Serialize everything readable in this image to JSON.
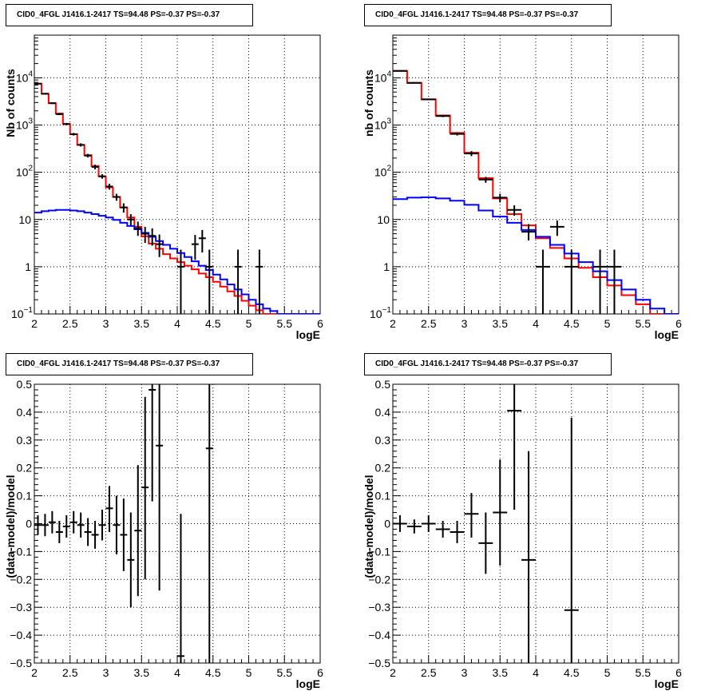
{
  "chart_data": [
    {
      "type": "histogram",
      "title": "CID0_4FGL J1416.1-2417 TS=94.48 PS=-0.37 PS=-0.37",
      "xlabel": "logE",
      "ylabel": "Nb of counts",
      "xlim": [
        2,
        6
      ],
      "ylim": [
        0.1,
        80000
      ],
      "yscale": "log",
      "grid": true,
      "xticks": [
        "2",
        "2.5",
        "3",
        "3.5",
        "4",
        "4.5",
        "5",
        "5.5",
        "6"
      ],
      "yticks": [
        {
          "value": 0.1,
          "label": "10",
          "exp": "−1"
        },
        {
          "value": 1,
          "label": "1",
          "exp": ""
        },
        {
          "value": 10,
          "label": "10",
          "exp": ""
        },
        {
          "value": 100,
          "label": "10",
          "exp": "2"
        },
        {
          "value": 1000,
          "label": "10",
          "exp": "3"
        },
        {
          "value": 10000,
          "label": "10",
          "exp": "4"
        }
      ],
      "series": [
        {
          "color": "#ff0000",
          "kind": "step",
          "edges": [
            2,
            2.1,
            2.2,
            2.3,
            2.4,
            2.5,
            2.6,
            2.7,
            2.8,
            2.9,
            3,
            3.1,
            3.2,
            3.3,
            3.4,
            3.5,
            3.6,
            3.7,
            3.8,
            3.9,
            4,
            4.1,
            4.2,
            4.3,
            4.4,
            4.5,
            4.6,
            4.7,
            4.8,
            4.9,
            5,
            5.1,
            5.2,
            5.3,
            5.4,
            5.5,
            5.6,
            5.7,
            5.8,
            5.9,
            6
          ],
          "values": [
            7500,
            4600,
            2900,
            1750,
            1050,
            640,
            380,
            230,
            135,
            82,
            48,
            30,
            18,
            11,
            7,
            4.4,
            3.1,
            2.4,
            1.85,
            1.5,
            1.25,
            1.05,
            0.88,
            0.72,
            0.6,
            0.48,
            0.38,
            0.3,
            0.24,
            0.19,
            0.15,
            0.12,
            0.1,
            0.1,
            0.1,
            0.1,
            0.1,
            0.1,
            0.1,
            0.1
          ]
        },
        {
          "color": "#0000ff",
          "kind": "step",
          "edges": [
            2,
            2.1,
            2.2,
            2.3,
            2.4,
            2.5,
            2.6,
            2.7,
            2.8,
            2.9,
            3,
            3.1,
            3.2,
            3.3,
            3.4,
            3.5,
            3.6,
            3.7,
            3.8,
            3.9,
            4,
            4.1,
            4.2,
            4.3,
            4.4,
            4.5,
            4.6,
            4.7,
            4.8,
            4.9,
            5,
            5.1,
            5.2,
            5.3,
            5.4,
            5.5,
            5.6,
            5.7,
            5.8,
            5.9,
            6
          ],
          "values": [
            14,
            15,
            15.5,
            16,
            16,
            15.5,
            15,
            14,
            13,
            12,
            11,
            9.8,
            8.5,
            7.3,
            6.2,
            5.2,
            4.3,
            3.5,
            2.9,
            2.4,
            1.95,
            1.6,
            1.3,
            1.05,
            0.85,
            0.68,
            0.54,
            0.42,
            0.33,
            0.26,
            0.2,
            0.16,
            0.13,
            0.115,
            0.1,
            0.1,
            0.1,
            0.1,
            0.1,
            0.1
          ]
        },
        {
          "color": "#000000",
          "kind": "points",
          "dx": 0.05,
          "points": [
            {
              "x": 2.05,
              "y": 7500,
              "lo": 7330,
              "hi": 7670
            },
            {
              "x": 2.15,
              "y": 4600,
              "lo": 4460,
              "hi": 4740
            },
            {
              "x": 2.25,
              "y": 2900,
              "lo": 2790,
              "hi": 3010
            },
            {
              "x": 2.35,
              "y": 1700,
              "lo": 1620,
              "hi": 1780
            },
            {
              "x": 2.45,
              "y": 1050,
              "lo": 990,
              "hi": 1110
            },
            {
              "x": 2.55,
              "y": 640,
              "lo": 600,
              "hi": 680
            },
            {
              "x": 2.65,
              "y": 380,
              "lo": 350,
              "hi": 410
            },
            {
              "x": 2.75,
              "y": 225,
              "lo": 205,
              "hi": 245
            },
            {
              "x": 2.85,
              "y": 130,
              "lo": 115,
              "hi": 145
            },
            {
              "x": 2.95,
              "y": 82,
              "lo": 73,
              "hi": 91
            },
            {
              "x": 3.05,
              "y": 50,
              "lo": 43,
              "hi": 57
            },
            {
              "x": 3.15,
              "y": 30,
              "lo": 25,
              "hi": 35
            },
            {
              "x": 3.25,
              "y": 18,
              "lo": 14,
              "hi": 22
            },
            {
              "x": 3.35,
              "y": 10,
              "lo": 7.5,
              "hi": 13
            },
            {
              "x": 3.45,
              "y": 6.5,
              "lo": 4.5,
              "hi": 9
            },
            {
              "x": 3.55,
              "y": 5,
              "lo": 3.2,
              "hi": 7
            },
            {
              "x": 3.65,
              "y": 4.5,
              "lo": 2.8,
              "hi": 6.5
            },
            {
              "x": 3.75,
              "y": 3,
              "lo": 1.6,
              "hi": 4.8
            },
            {
              "x": 4.05,
              "y": 1,
              "lo": 0.1,
              "hi": 2.3
            },
            {
              "x": 4.25,
              "y": 3,
              "lo": 1.4,
              "hi": 4.7
            },
            {
              "x": 4.35,
              "y": 4,
              "lo": 2,
              "hi": 6
            },
            {
              "x": 4.45,
              "y": 1,
              "lo": 0.1,
              "hi": 2.3
            },
            {
              "x": 4.85,
              "y": 1,
              "lo": 0.1,
              "hi": 2.3
            },
            {
              "x": 5.15,
              "y": 1,
              "lo": 0.1,
              "hi": 2.3
            }
          ]
        }
      ]
    },
    {
      "type": "histogram",
      "title": "CID0_4FGL J1416.1-2417 TS=94.48 PS=-0.37 PS=-0.37",
      "xlabel": "logE",
      "ylabel": "nb of counts",
      "xlim": [
        2,
        6
      ],
      "ylim": [
        0.1,
        80000
      ],
      "yscale": "log",
      "grid": true,
      "xticks": [
        "2",
        "2.5",
        "3",
        "3.5",
        "4",
        "4.5",
        "5",
        "5.5",
        "6"
      ],
      "yticks": [
        {
          "value": 0.1,
          "label": "10",
          "exp": "−1"
        },
        {
          "value": 1,
          "label": "1",
          "exp": ""
        },
        {
          "value": 10,
          "label": "10",
          "exp": ""
        },
        {
          "value": 100,
          "label": "10",
          "exp": "2"
        },
        {
          "value": 1000,
          "label": "10",
          "exp": "3"
        },
        {
          "value": 10000,
          "label": "10",
          "exp": "4"
        }
      ],
      "series": [
        {
          "color": "#ff0000",
          "kind": "step",
          "edges": [
            2,
            2.2,
            2.4,
            2.6,
            2.8,
            3,
            3.2,
            3.4,
            3.6,
            3.8,
            4,
            4.2,
            4.4,
            4.6,
            4.8,
            5,
            5.2,
            5.4,
            5.6,
            5.8,
            6
          ],
          "values": [
            14000,
            7800,
            3500,
            1600,
            680,
            260,
            75,
            28,
            13,
            7.5,
            4,
            2.5,
            1.5,
            0.95,
            0.6,
            0.4,
            0.25,
            0.16,
            0.1,
            0.1
          ]
        },
        {
          "color": "#0000ff",
          "kind": "step",
          "edges": [
            2,
            2.2,
            2.4,
            2.6,
            2.8,
            3,
            3.2,
            3.4,
            3.6,
            3.8,
            4,
            4.2,
            4.4,
            4.6,
            4.8,
            5,
            5.2,
            5.4,
            5.6,
            5.8,
            6
          ],
          "values": [
            27,
            29,
            29.5,
            28,
            25,
            20.5,
            15.5,
            11.5,
            8.5,
            6,
            4.3,
            2.9,
            1.9,
            1.25,
            0.8,
            0.52,
            0.33,
            0.2,
            0.13,
            0.1
          ]
        },
        {
          "color": "#000000",
          "kind": "points",
          "dx": 0.1,
          "points": [
            {
              "x": 2.1,
              "y": 14000,
              "lo": 13760,
              "hi": 14240
            },
            {
              "x": 2.3,
              "y": 7800,
              "lo": 7620,
              "hi": 7980
            },
            {
              "x": 2.5,
              "y": 3500,
              "lo": 3380,
              "hi": 3620
            },
            {
              "x": 2.7,
              "y": 1550,
              "lo": 1470,
              "hi": 1630
            },
            {
              "x": 2.9,
              "y": 650,
              "lo": 600,
              "hi": 700
            },
            {
              "x": 3.1,
              "y": 250,
              "lo": 220,
              "hi": 280
            },
            {
              "x": 3.3,
              "y": 70,
              "lo": 60,
              "hi": 80
            },
            {
              "x": 3.5,
              "y": 29,
              "lo": 23,
              "hi": 35
            },
            {
              "x": 3.7,
              "y": 16,
              "lo": 12,
              "hi": 20
            },
            {
              "x": 3.9,
              "y": 5.5,
              "lo": 3.6,
              "hi": 8
            },
            {
              "x": 4.1,
              "y": 1,
              "lo": 0.1,
              "hi": 2.3
            },
            {
              "x": 4.3,
              "y": 7,
              "lo": 4.5,
              "hi": 9.5
            },
            {
              "x": 4.5,
              "y": 1,
              "lo": 0.1,
              "hi": 2.3
            },
            {
              "x": 4.9,
              "y": 1,
              "lo": 0.1,
              "hi": 2.3
            },
            {
              "x": 5.1,
              "y": 1,
              "lo": 0.1,
              "hi": 2.3
            }
          ]
        }
      ]
    },
    {
      "type": "scatter",
      "title": "CID0_4FGL J1416.1-2417 TS=94.48 PS=-0.37 PS=-0.37",
      "xlabel": "logE",
      "ylabel": "(data-model)/model",
      "xlim": [
        2,
        6
      ],
      "ylim": [
        -0.5,
        0.5
      ],
      "yscale": "linear",
      "grid": true,
      "xticks": [
        "2",
        "2.5",
        "3",
        "3.5",
        "4",
        "4.5",
        "5",
        "5.5",
        "6"
      ],
      "ytick_values": [
        -0.5,
        -0.4,
        -0.3,
        -0.2,
        -0.1,
        0,
        0.1,
        0.2,
        0.3,
        0.4,
        0.5
      ],
      "ytick_labels": [
        "−0.5",
        "−0.4",
        "−0.3",
        "−0.2",
        "−0.1",
        "0",
        "0.1",
        "0.2",
        "0.3",
        "0.4",
        "0.5"
      ],
      "series": [
        {
          "color": "#000000",
          "kind": "points",
          "dx": 0.05,
          "points": [
            {
              "x": 2.05,
              "y": -0.005,
              "lo": -0.04,
              "hi": 0.03
            },
            {
              "x": 2.15,
              "y": -0.005,
              "lo": -0.045,
              "hi": 0.035
            },
            {
              "x": 2.25,
              "y": 0.005,
              "lo": -0.035,
              "hi": 0.045
            },
            {
              "x": 2.35,
              "y": -0.03,
              "lo": -0.07,
              "hi": 0.01
            },
            {
              "x": 2.45,
              "y": -0.01,
              "lo": -0.05,
              "hi": 0.03
            },
            {
              "x": 2.55,
              "y": 0.005,
              "lo": -0.035,
              "hi": 0.045
            },
            {
              "x": 2.65,
              "y": -0.005,
              "lo": -0.05,
              "hi": 0.04
            },
            {
              "x": 2.75,
              "y": -0.03,
              "lo": -0.08,
              "hi": 0.02
            },
            {
              "x": 2.85,
              "y": -0.04,
              "lo": -0.09,
              "hi": 0.01
            },
            {
              "x": 2.95,
              "y": -0.005,
              "lo": -0.06,
              "hi": 0.05
            },
            {
              "x": 3.05,
              "y": 0.055,
              "lo": -0.03,
              "hi": 0.135
            },
            {
              "x": 3.15,
              "y": -0.005,
              "lo": -0.11,
              "hi": 0.1
            },
            {
              "x": 3.25,
              "y": -0.04,
              "lo": -0.17,
              "hi": 0.09
            },
            {
              "x": 3.35,
              "y": -0.13,
              "lo": -0.3,
              "hi": 0.04
            },
            {
              "x": 3.45,
              "y": -0.025,
              "lo": -0.26,
              "hi": 0.21
            },
            {
              "x": 3.55,
              "y": 0.13,
              "lo": -0.2,
              "hi": 0.455
            },
            {
              "x": 3.65,
              "y": 0.48,
              "lo": 0.08,
              "hi": 0.5
            },
            {
              "x": 3.75,
              "y": 0.28,
              "lo": -0.24,
              "hi": 0.5
            },
            {
              "x": 4.05,
              "y": -0.475,
              "lo": -0.5,
              "hi": 0.035
            },
            {
              "x": 4.45,
              "y": 0.27,
              "lo": -0.5,
              "hi": 0.5
            }
          ]
        }
      ]
    },
    {
      "type": "scatter",
      "title": "CID0_4FGL J1416.1-2417 TS=94.48 PS=-0.37 PS=-0.37",
      "xlabel": "logE",
      "ylabel": "(data-model)/model",
      "xlim": [
        2,
        6
      ],
      "ylim": [
        -0.5,
        0.5
      ],
      "yscale": "linear",
      "grid": true,
      "xticks": [
        "2",
        "2.5",
        "3",
        "3.5",
        "4",
        "4.5",
        "5",
        "5.5",
        "6"
      ],
      "ytick_values": [
        -0.5,
        -0.4,
        -0.3,
        -0.2,
        -0.1,
        0,
        0.1,
        0.2,
        0.3,
        0.4,
        0.5
      ],
      "ytick_labels": [
        "−0.5",
        "−0.4",
        "−0.3",
        "−0.2",
        "−0.1",
        "0",
        "0.1",
        "0.2",
        "0.3",
        "0.4",
        "0.5"
      ],
      "series": [
        {
          "color": "#000000",
          "kind": "points",
          "dx": 0.1,
          "points": [
            {
              "x": 2.1,
              "y": 0,
              "lo": -0.03,
              "hi": 0.03
            },
            {
              "x": 2.3,
              "y": -0.01,
              "lo": -0.035,
              "hi": 0.015
            },
            {
              "x": 2.5,
              "y": 0,
              "lo": -0.03,
              "hi": 0.03
            },
            {
              "x": 2.7,
              "y": -0.02,
              "lo": -0.05,
              "hi": 0.01
            },
            {
              "x": 2.9,
              "y": -0.03,
              "lo": -0.07,
              "hi": 0.01
            },
            {
              "x": 3.1,
              "y": 0.035,
              "lo": -0.05,
              "hi": 0.11
            },
            {
              "x": 3.3,
              "y": -0.07,
              "lo": -0.18,
              "hi": 0.04
            },
            {
              "x": 3.5,
              "y": 0.04,
              "lo": -0.15,
              "hi": 0.23
            },
            {
              "x": 3.7,
              "y": 0.405,
              "lo": 0.05,
              "hi": 0.5
            },
            {
              "x": 3.9,
              "y": -0.13,
              "lo": -0.5,
              "hi": 0.26
            },
            {
              "x": 4.5,
              "y": -0.31,
              "lo": -0.5,
              "hi": 0.38
            }
          ]
        }
      ]
    }
  ]
}
